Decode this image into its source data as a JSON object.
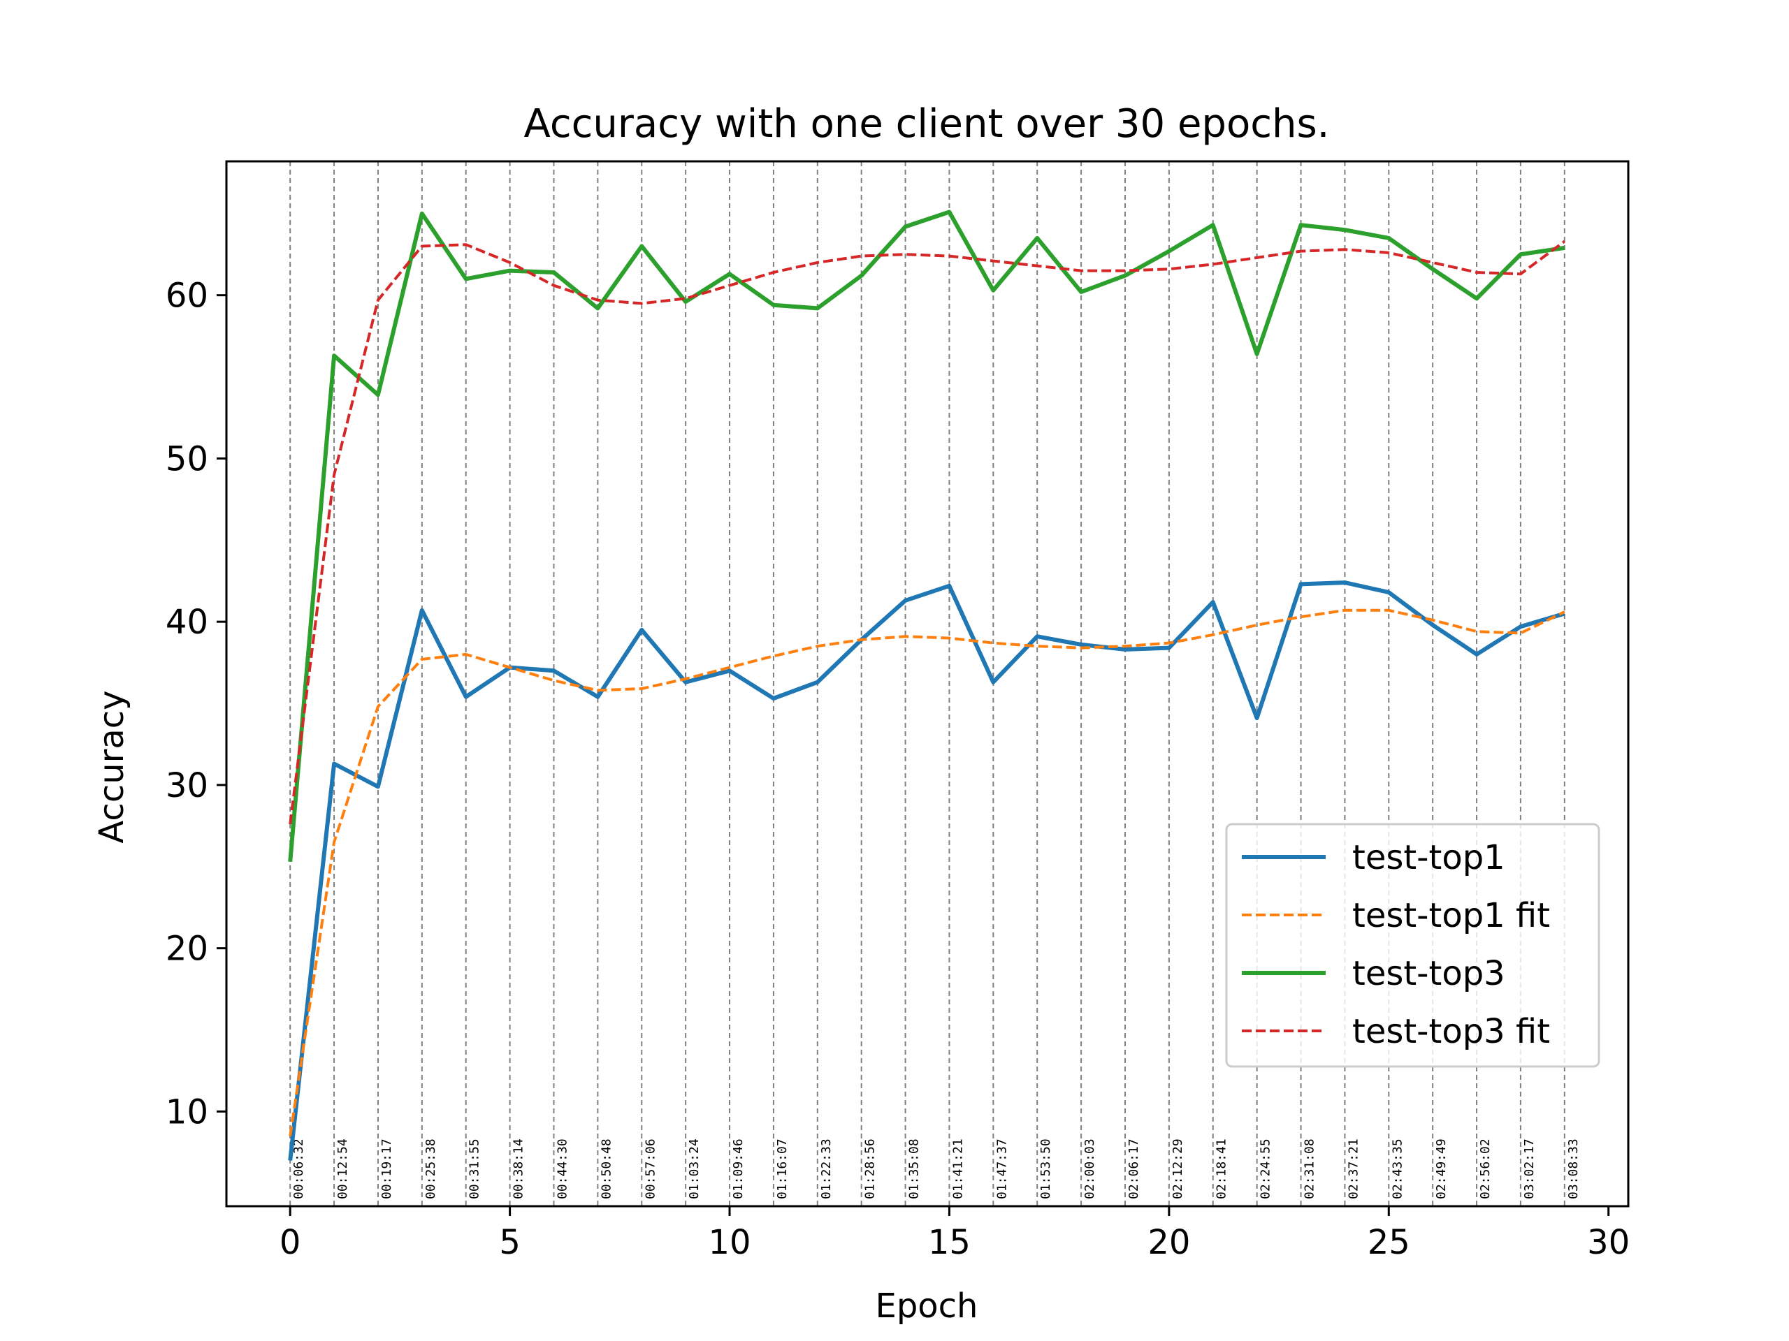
{
  "chart_data": {
    "type": "line",
    "title": "Accuracy with one client over 30 epochs.",
    "xlabel": "Epoch",
    "ylabel": "Accuracy",
    "xlim": [
      -1.45,
      30.45
    ],
    "ylim": [
      4.2,
      68.2
    ],
    "xticks": [
      0,
      5,
      10,
      15,
      20,
      25,
      30
    ],
    "yticks": [
      10,
      20,
      30,
      40,
      50,
      60
    ],
    "grid": false,
    "legend_position": "lower right",
    "x": [
      0,
      1,
      2,
      3,
      4,
      5,
      6,
      7,
      8,
      9,
      10,
      11,
      12,
      13,
      14,
      15,
      16,
      17,
      18,
      19,
      20,
      21,
      22,
      23,
      24,
      25,
      26,
      27,
      28,
      29
    ],
    "time_markers": [
      "00:06:32",
      "00:12:54",
      "00:19:17",
      "00:25:38",
      "00:31:55",
      "00:38:14",
      "00:44:30",
      "00:50:48",
      "00:57:06",
      "01:03:24",
      "01:09:46",
      "01:16:07",
      "01:22:33",
      "01:28:56",
      "01:35:08",
      "01:41:21",
      "01:47:37",
      "01:53:50",
      "02:00:03",
      "02:06:17",
      "02:12:29",
      "02:18:41",
      "02:24:55",
      "02:31:08",
      "02:37:21",
      "02:43:35",
      "02:49:49",
      "02:56:02",
      "03:02:17",
      "03:08:33"
    ],
    "series": [
      {
        "name": "test-top1",
        "style": "solid",
        "color": "#1f77b4",
        "values": [
          7.0,
          31.3,
          29.9,
          40.7,
          35.4,
          37.2,
          37.0,
          35.4,
          39.5,
          36.3,
          37.0,
          35.3,
          36.3,
          38.9,
          41.3,
          42.2,
          36.3,
          39.1,
          38.6,
          38.3,
          38.4,
          41.2,
          34.1,
          42.3,
          42.4,
          41.8,
          39.8,
          38.0,
          39.7,
          40.5
        ]
      },
      {
        "name": "test-top1 fit",
        "style": "dashed",
        "color": "#ff7f0e",
        "values": [
          8.5,
          26.5,
          34.8,
          37.7,
          38.0,
          37.2,
          36.4,
          35.8,
          35.9,
          36.5,
          37.2,
          37.9,
          38.5,
          38.9,
          39.1,
          39.0,
          38.7,
          38.5,
          38.4,
          38.5,
          38.7,
          39.2,
          39.8,
          40.3,
          40.7,
          40.7,
          40.1,
          39.4,
          39.3,
          40.6
        ]
      },
      {
        "name": "test-top3",
        "style": "solid",
        "color": "#2ca02c",
        "values": [
          25.3,
          56.3,
          53.9,
          65.0,
          61.0,
          61.5,
          61.4,
          59.2,
          63.0,
          59.6,
          61.3,
          59.4,
          59.2,
          61.2,
          64.2,
          65.1,
          60.3,
          63.5,
          60.2,
          61.2,
          62.7,
          64.3,
          56.4,
          64.3,
          64.0,
          63.5,
          61.6,
          59.8,
          62.5,
          62.9
        ]
      },
      {
        "name": "test-top3 fit",
        "style": "dashed",
        "color": "#d62728",
        "values": [
          27.6,
          49.0,
          59.7,
          63.0,
          63.1,
          62.0,
          60.6,
          59.7,
          59.5,
          59.8,
          60.6,
          61.4,
          62.0,
          62.4,
          62.5,
          62.4,
          62.1,
          61.8,
          61.5,
          61.5,
          61.6,
          61.9,
          62.3,
          62.7,
          62.8,
          62.6,
          62.0,
          61.4,
          61.3,
          63.3
        ]
      }
    ]
  }
}
